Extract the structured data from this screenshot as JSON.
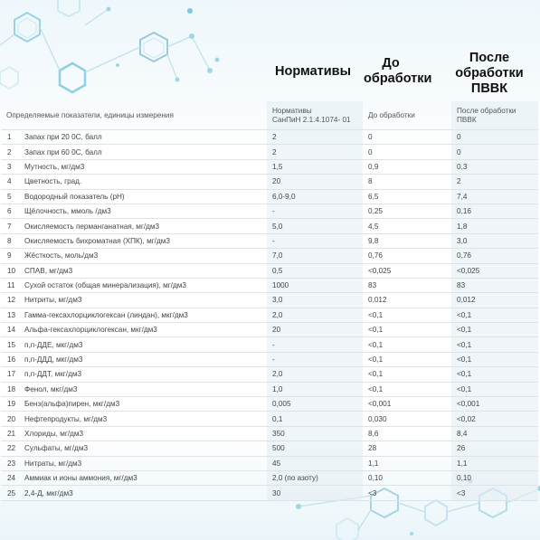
{
  "columns": {
    "norm": "Нормативы",
    "before": "До обработки",
    "after": "После обработки ПВВК"
  },
  "table_header": {
    "indicator": "Определяемые показатели, единицы измерения",
    "norm_line1": "Нормативы",
    "norm_line2": "СанПиН 2.1.4.1074- 01",
    "before": "До обработки",
    "after_line1": "После обработки",
    "after_line2": "ПВВК"
  },
  "rows": [
    {
      "n": "1",
      "name": "Запах при 20 0С, балл",
      "norm": "2",
      "before": "0",
      "after": "0"
    },
    {
      "n": "2",
      "name": "Запах при 60 0С, балл",
      "norm": "2",
      "before": "0",
      "after": "0"
    },
    {
      "n": "3",
      "name": "Мутность, мг/дм3",
      "norm": "1,5",
      "before": "0,9",
      "after": "0,3"
    },
    {
      "n": "4",
      "name": "Цветность, град.",
      "norm": "20",
      "before": "8",
      "after": "2"
    },
    {
      "n": "5",
      "name": "Водородный показатель (рН)",
      "norm": "6,0-9,0",
      "before": "6,5",
      "after": "7,4"
    },
    {
      "n": "6",
      "name": "Щёлочность, ммоль /дм3",
      "norm": "-",
      "before": "0,25",
      "after": "0,16"
    },
    {
      "n": "7",
      "name": "Окисляемость перманганатная, мг/дм3",
      "norm": "5,0",
      "before": "4,5",
      "after": "1,8"
    },
    {
      "n": "8",
      "name": "Окисляемость бихроматная (ХПК), мг/дм3",
      "norm": "-",
      "before": "9,8",
      "after": "3,0"
    },
    {
      "n": "9",
      "name": "Жёсткость, моль/дм3",
      "norm": "7,0",
      "before": "0,76",
      "after": "0,76"
    },
    {
      "n": "10",
      "name": "СПАВ, мг/дм3",
      "norm": "0,5",
      "before": "<0,025",
      "after": "<0,025"
    },
    {
      "n": "11",
      "name": "Сухой остаток (общая минерализация), мг/дм3",
      "norm": "1000",
      "before": "83",
      "after": "83"
    },
    {
      "n": "12",
      "name": "Нитриты, мг/дм3",
      "norm": "3,0",
      "before": "0,012",
      "after": "0,012"
    },
    {
      "n": "13",
      "name": "Гамма-гексахлорциклогексан (линдан), мкг/дм3",
      "norm": "2,0",
      "before": "<0,1",
      "after": "<0,1"
    },
    {
      "n": "14",
      "name": "Альфа-гексахлорциклогексан, мкг/дм3",
      "norm": "20",
      "before": "<0,1",
      "after": "<0,1"
    },
    {
      "n": "15",
      "name": "п,п-ДДЕ, мкг/дм3",
      "norm": "-",
      "before": "<0,1",
      "after": "<0,1"
    },
    {
      "n": "16",
      "name": "п,п-ДДД, мкг/дм3",
      "norm": "-",
      "before": "<0,1",
      "after": "<0,1"
    },
    {
      "n": "17",
      "name": "п,п-ДДТ, мкг/дм3",
      "norm": "2,0",
      "before": "<0,1",
      "after": "<0,1"
    },
    {
      "n": "18",
      "name": "Фенол, мкг/дм3",
      "norm": "1,0",
      "before": "<0,1",
      "after": "<0,1"
    },
    {
      "n": "19",
      "name": "Бенз(альфа)пирен, мкг/дм3",
      "norm": "0,005",
      "before": "<0,001",
      "after": "<0,001"
    },
    {
      "n": "20",
      "name": "Нефтепродукты, мг/дм3",
      "norm": "0,1",
      "before": "0,030",
      "after": "<0,02"
    },
    {
      "n": "21",
      "name": "Хлориды, мг/дм3",
      "norm": "350",
      "before": "8,6",
      "after": "8,4"
    },
    {
      "n": "22",
      "name": "Сульфаты, мг/дм3",
      "norm": "500",
      "before": "28",
      "after": "26"
    },
    {
      "n": "23",
      "name": "Нитраты, мг/дм3",
      "norm": "45",
      "before": "1,1",
      "after": "1,1"
    },
    {
      "n": "24",
      "name": "Аммиак и ионы аммония, мг/дм3",
      "norm": "2,0 (по азоту)",
      "before": "0,10",
      "after": "0,10"
    },
    {
      "n": "25",
      "name": "2,4-Д, мкг/дм3",
      "norm": "30",
      "before": "<3",
      "after": "<3"
    }
  ]
}
